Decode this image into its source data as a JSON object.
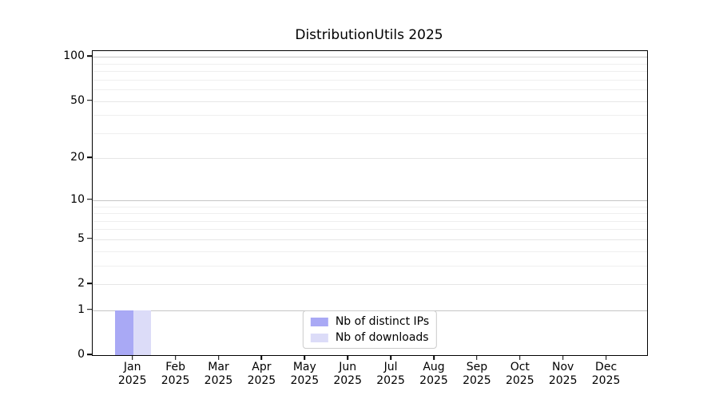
{
  "figure": {
    "background": "#ffffff",
    "axis_color": "#000000"
  },
  "chart_data": {
    "type": "bar",
    "title": "DistributionUtils 2025",
    "months": [
      "Jan",
      "Feb",
      "Mar",
      "Apr",
      "May",
      "Jun",
      "Jul",
      "Aug",
      "Sep",
      "Oct",
      "Nov",
      "Dec"
    ],
    "year": "2025",
    "series": [
      {
        "name": "Nb of distinct IPs",
        "color": "#a9a9f5",
        "values": [
          1,
          0,
          0,
          0,
          0,
          0,
          0,
          0,
          0,
          0,
          0,
          0
        ]
      },
      {
        "name": "Nb of downloads",
        "color": "#dcdcf8",
        "values": [
          1,
          0,
          0,
          0,
          0,
          0,
          0,
          0,
          0,
          0,
          0,
          0
        ]
      }
    ],
    "y_axis": {
      "scale": "log1p",
      "range": [
        0,
        112
      ],
      "ticks": [
        0,
        1,
        2,
        5,
        10,
        20,
        50,
        100
      ],
      "minor_ticks": [
        3,
        4,
        6,
        7,
        8,
        9,
        30,
        40,
        60,
        70,
        80,
        90
      ]
    },
    "grid": {
      "major_color": "#c6c6c6",
      "mid_color": "#e6e6e6",
      "minor_color": "#efefef"
    },
    "legend": {
      "position": "lower center"
    }
  }
}
